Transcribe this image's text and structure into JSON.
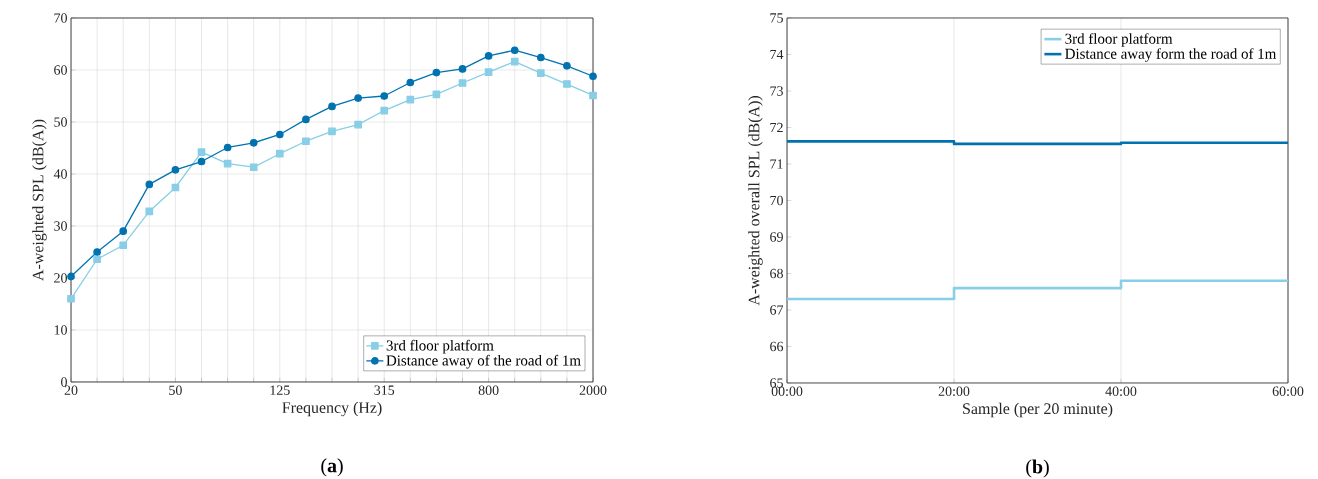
{
  "chart_data": [
    {
      "type": "line",
      "xlabel": "Frequency (Hz)",
      "ylabel": "A-weighted SPL (dB(A))",
      "categories": [
        "20",
        null,
        null,
        null,
        "50",
        null,
        null,
        null,
        "125",
        null,
        null,
        null,
        "315",
        null,
        null,
        null,
        "800",
        null,
        null,
        null,
        "2000"
      ],
      "series": [
        {
          "name": "3rd floor platform",
          "color": "#87cee6",
          "marker": "square",
          "values": [
            16.0,
            23.6,
            26.3,
            32.8,
            37.4,
            44.2,
            42.0,
            41.3,
            43.9,
            46.3,
            48.2,
            49.5,
            52.2,
            54.3,
            55.3,
            57.5,
            59.6,
            61.6,
            59.4,
            57.3,
            55.1
          ]
        },
        {
          "name": "Distance away of the road of 1m",
          "color": "#0072b0",
          "marker": "circle",
          "values": [
            20.3,
            25.0,
            29.0,
            38.0,
            40.8,
            42.4,
            45.1,
            46.0,
            47.6,
            50.5,
            53.0,
            54.6,
            55.0,
            57.6,
            59.5,
            60.2,
            62.7,
            63.8,
            62.4,
            60.8,
            58.8
          ]
        }
      ],
      "ylim": [
        0,
        70
      ],
      "yticks": [
        0,
        10,
        20,
        30,
        40,
        50,
        60,
        70
      ],
      "grid": true,
      "legend": "bottom right",
      "line_style": "solid",
      "annotations": [
        "(**a**)"
      ]
    },
    {
      "type": "step",
      "xlabel": "Sample (per 20 minute)",
      "ylabel": "A-weighted overall SPL (dB(A))",
      "x": [
        0,
        20,
        40,
        60
      ],
      "series": [
        {
          "name": "3rd floor platform",
          "color": "#87cee6",
          "values": [
            67.3,
            67.6,
            67.8,
            67.8
          ]
        },
        {
          "name": "Distance away form the road of 1m",
          "color": "#0072b0",
          "values": [
            71.62,
            71.55,
            71.58,
            71.58
          ]
        }
      ],
      "xlim": [
        0,
        60
      ],
      "xticks": [
        {
          "value": 0,
          "label": "00:00"
        },
        {
          "value": 20,
          "label": "20:00"
        },
        {
          "value": 40,
          "label": "40:00"
        },
        {
          "value": 60,
          "label": "60:00"
        }
      ],
      "ylim": [
        65,
        75
      ],
      "yticks": [
        65,
        66,
        67,
        68,
        69,
        70,
        71,
        72,
        73,
        74,
        75
      ],
      "grid": "x",
      "legend": "top right",
      "marker": "none",
      "line_style": "solid",
      "annotations": [
        "(**b**)"
      ]
    }
  ]
}
